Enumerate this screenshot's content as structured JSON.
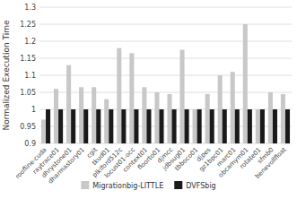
{
  "chart_data": {
    "type": "bar",
    "y_label": "Normalized Execution Time",
    "categories": [
      "roofline-cuda",
      "raytrace01",
      "dhrystone01",
      "dharmastory01",
      "cgit",
      "tkud01",
      "plkiford512c",
      "locust01-occ",
      "context01",
      "floorto01",
      "djmcc",
      "jdbsug01",
      "tbboco01",
      "djpes",
      "gz1bpc01",
      "marc01",
      "obcamym01",
      "rotate01",
      "sfmb0",
      "benevollfloat"
    ],
    "series": [
      {
        "name": "Migrationbig-LITTLE",
        "color": "#c8c8c8",
        "values": [
          0.97,
          1.06,
          1.13,
          1.065,
          1.065,
          1.03,
          1.18,
          1.165,
          1.065,
          1.05,
          1.045,
          1.175,
          1.0,
          1.045,
          1.1,
          1.11,
          1.25,
          1.0,
          1.05,
          1.045
        ]
      },
      {
        "name": "DVFSbig",
        "color": "#1a1a1a",
        "values": [
          1.0,
          1.0,
          1.0,
          1.0,
          1.0,
          1.0,
          1.0,
          1.0,
          1.0,
          1.0,
          1.0,
          1.0,
          1.0,
          1.0,
          1.0,
          1.0,
          1.0,
          1.0,
          1.0,
          1.0
        ]
      }
    ],
    "ylim": [
      0.9,
      1.3
    ],
    "yticks": [
      0.9,
      0.95,
      1,
      1.05,
      1.1,
      1.15,
      1.2,
      1.25,
      1.3
    ],
    "grid": true,
    "legend": "bottom"
  }
}
